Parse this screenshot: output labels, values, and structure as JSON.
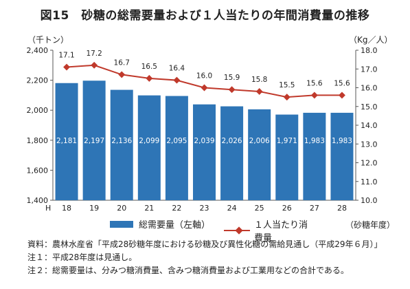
{
  "page": {
    "title": "図15　砂糖の総需要量および１人当たりの年間消費量の推移",
    "unit_left": "（千トン）",
    "unit_right": "（Kg／人）",
    "year_unit": "（砂糖年度）",
    "legend": {
      "bar_label": "総需要量（左軸）",
      "line_label": "１人当たり消費量"
    },
    "notes": [
      "資料：農林水産省「平成28砂糖年度における砂糖及び異性化糖の需給見通し（平成29年６月）」",
      "注１：平成28年度は見通し。",
      "注２：総需要量は、分みつ糖消費量、含みつ糖消費量および工業用などの合計である。"
    ],
    "colors": {
      "bar": "#2e75b6",
      "line": "#c0392b"
    }
  },
  "chart_data": {
    "type": "bar",
    "era_label": "H",
    "categories": [
      "18",
      "19",
      "20",
      "21",
      "22",
      "23",
      "24",
      "25",
      "26",
      "27",
      "28"
    ],
    "series": [
      {
        "name": "総需要量（左軸）",
        "type": "bar",
        "axis": "left",
        "values": [
          2181,
          2197,
          2136,
          2099,
          2095,
          2039,
          2026,
          2006,
          1971,
          1983,
          1983
        ],
        "labels": [
          "2,181",
          "2,197",
          "2,136",
          "2,099",
          "2,095",
          "2,039",
          "2,026",
          "2,006",
          "1,971",
          "1,983",
          "1,983"
        ]
      },
      {
        "name": "１人当たり消費量",
        "type": "line",
        "axis": "right",
        "values": [
          17.1,
          17.2,
          16.7,
          16.5,
          16.4,
          16.0,
          15.9,
          15.8,
          15.5,
          15.6,
          15.6
        ],
        "labels": [
          "17.1",
          "17.2",
          "16.7",
          "16.5",
          "16.4",
          "16.0",
          "15.9",
          "15.8",
          "15.5",
          "15.6",
          "15.6"
        ]
      }
    ],
    "y_left": {
      "range": [
        1400,
        2400
      ],
      "ticks": [
        1400,
        1600,
        1800,
        2000,
        2200,
        2400
      ],
      "tick_labels": [
        "1,400",
        "1,600",
        "1,800",
        "2,000",
        "2,200",
        "2,400"
      ]
    },
    "y_right": {
      "range": [
        10.0,
        18.0
      ],
      "ticks": [
        10,
        11,
        12,
        13,
        14,
        15,
        16,
        17,
        18
      ],
      "tick_labels": [
        "10.0",
        "11.0",
        "12.0",
        "13.0",
        "14.0",
        "15.0",
        "16.0",
        "17.0",
        "18.0"
      ]
    },
    "grid": false,
    "legend_position": "bottom"
  }
}
